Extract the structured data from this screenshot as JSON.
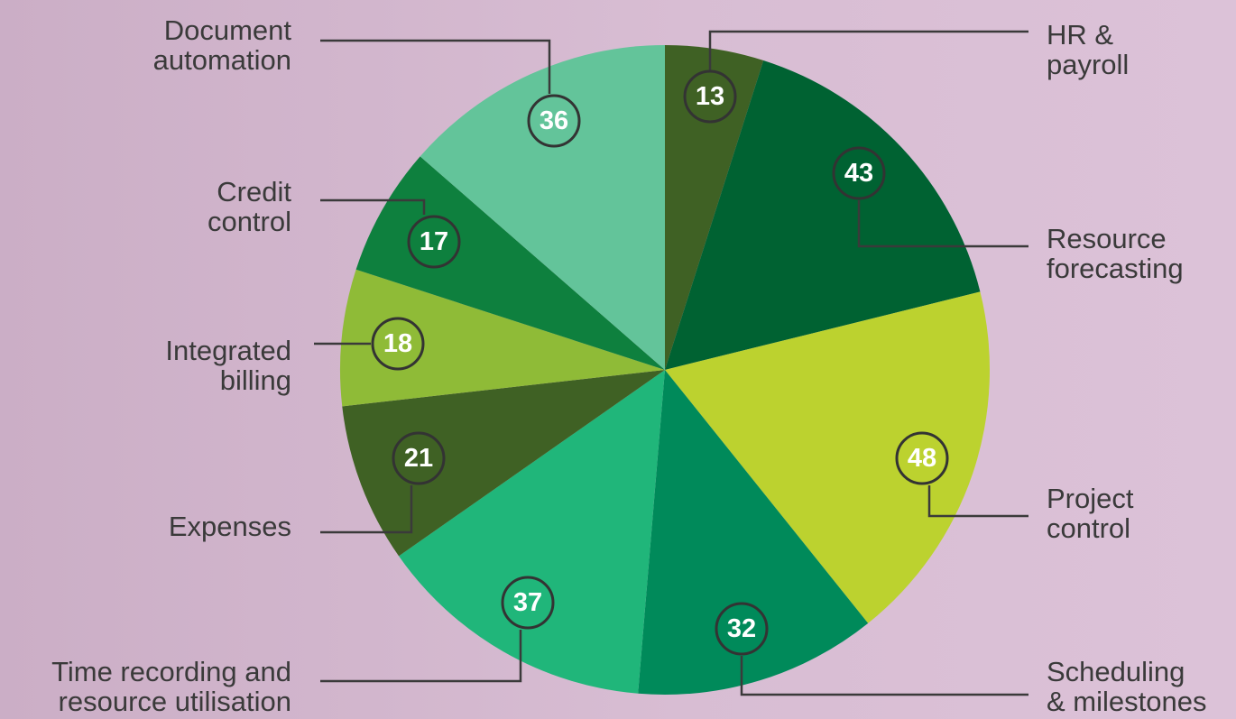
{
  "chart_data": {
    "type": "pie",
    "categories": [
      "HR &\npayroll",
      "Resource\nforecasting",
      "Project\ncontrol",
      "Scheduling\n& milestones",
      "Time recording and\nresource utilisation",
      "Expenses",
      "Integrated\nbilling",
      "Credit\ncontrol",
      "Document\nautomation"
    ],
    "values": [
      13,
      43,
      48,
      32,
      37,
      21,
      18,
      17,
      36
    ],
    "colors": [
      "#3f6124",
      "#006232",
      "#bcd22f",
      "#008a5a",
      "#20b67a",
      "#3f6124",
      "#8fbb37",
      "#0e803e",
      "#63c49a"
    ]
  }
}
